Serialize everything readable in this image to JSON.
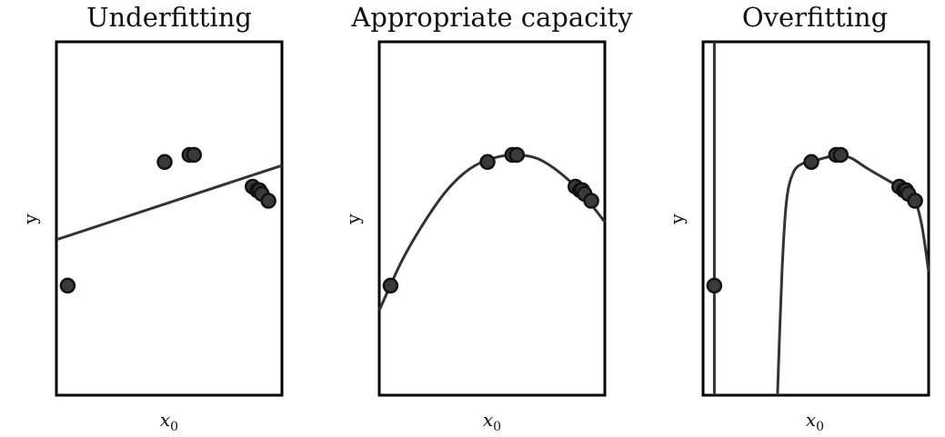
{
  "chart_data": [
    {
      "type": "scatter",
      "title": "Underfitting",
      "xlabel": "x",
      "xlabel_sub": "0",
      "ylabel": "y",
      "xlim": [
        0,
        1
      ],
      "ylim": [
        0,
        1
      ],
      "points": [
        {
          "x": 0.05,
          "y": 0.31
        },
        {
          "x": 0.48,
          "y": 0.66
        },
        {
          "x": 0.59,
          "y": 0.68
        },
        {
          "x": 0.61,
          "y": 0.68
        },
        {
          "x": 0.87,
          "y": 0.59
        },
        {
          "x": 0.89,
          "y": 0.58
        },
        {
          "x": 0.9,
          "y": 0.58
        },
        {
          "x": 0.91,
          "y": 0.57
        },
        {
          "x": 0.94,
          "y": 0.55
        }
      ],
      "fit": {
        "model": "linear",
        "x": [
          0,
          1
        ],
        "y": [
          0.44,
          0.65
        ]
      }
    },
    {
      "type": "scatter",
      "title": "Appropriate capacity",
      "xlabel": "x",
      "xlabel_sub": "0",
      "ylabel": "y",
      "xlim": [
        0,
        1
      ],
      "ylim": [
        0,
        1
      ],
      "points": [
        {
          "x": 0.05,
          "y": 0.31
        },
        {
          "x": 0.48,
          "y": 0.66
        },
        {
          "x": 0.59,
          "y": 0.68
        },
        {
          "x": 0.61,
          "y": 0.68
        },
        {
          "x": 0.87,
          "y": 0.59
        },
        {
          "x": 0.89,
          "y": 0.58
        },
        {
          "x": 0.9,
          "y": 0.58
        },
        {
          "x": 0.91,
          "y": 0.57
        },
        {
          "x": 0.94,
          "y": 0.55
        }
      ],
      "fit": {
        "model": "quadratic",
        "x": [
          0,
          0.1,
          0.2,
          0.3,
          0.4,
          0.5,
          0.6,
          0.7,
          0.8,
          0.9,
          1.0
        ],
        "y": [
          0.24,
          0.38,
          0.49,
          0.58,
          0.64,
          0.67,
          0.68,
          0.67,
          0.63,
          0.57,
          0.49
        ]
      }
    },
    {
      "type": "scatter",
      "title": "Overfitting",
      "xlabel": "x",
      "xlabel_sub": "0",
      "ylabel": "y",
      "xlim": [
        0,
        1
      ],
      "ylim": [
        0,
        1
      ],
      "points": [
        {
          "x": 0.05,
          "y": 0.31
        },
        {
          "x": 0.48,
          "y": 0.66
        },
        {
          "x": 0.59,
          "y": 0.68
        },
        {
          "x": 0.61,
          "y": 0.68
        },
        {
          "x": 0.87,
          "y": 0.59
        },
        {
          "x": 0.89,
          "y": 0.58
        },
        {
          "x": 0.9,
          "y": 0.58
        },
        {
          "x": 0.91,
          "y": 0.57
        },
        {
          "x": 0.94,
          "y": 0.55
        }
      ],
      "fit": {
        "model": "high-degree polynomial",
        "vertical_segment_x": 0.05,
        "x": [
          0.33,
          0.35,
          0.37,
          0.4,
          0.44,
          0.48,
          0.53,
          0.59,
          0.61,
          0.66,
          0.72,
          0.8,
          0.87,
          0.9,
          0.94,
          0.97,
          1.0
        ],
        "y": [
          0.0,
          0.35,
          0.55,
          0.63,
          0.655,
          0.66,
          0.67,
          0.68,
          0.68,
          0.67,
          0.645,
          0.615,
          0.59,
          0.58,
          0.55,
          0.48,
          0.35
        ]
      }
    }
  ]
}
